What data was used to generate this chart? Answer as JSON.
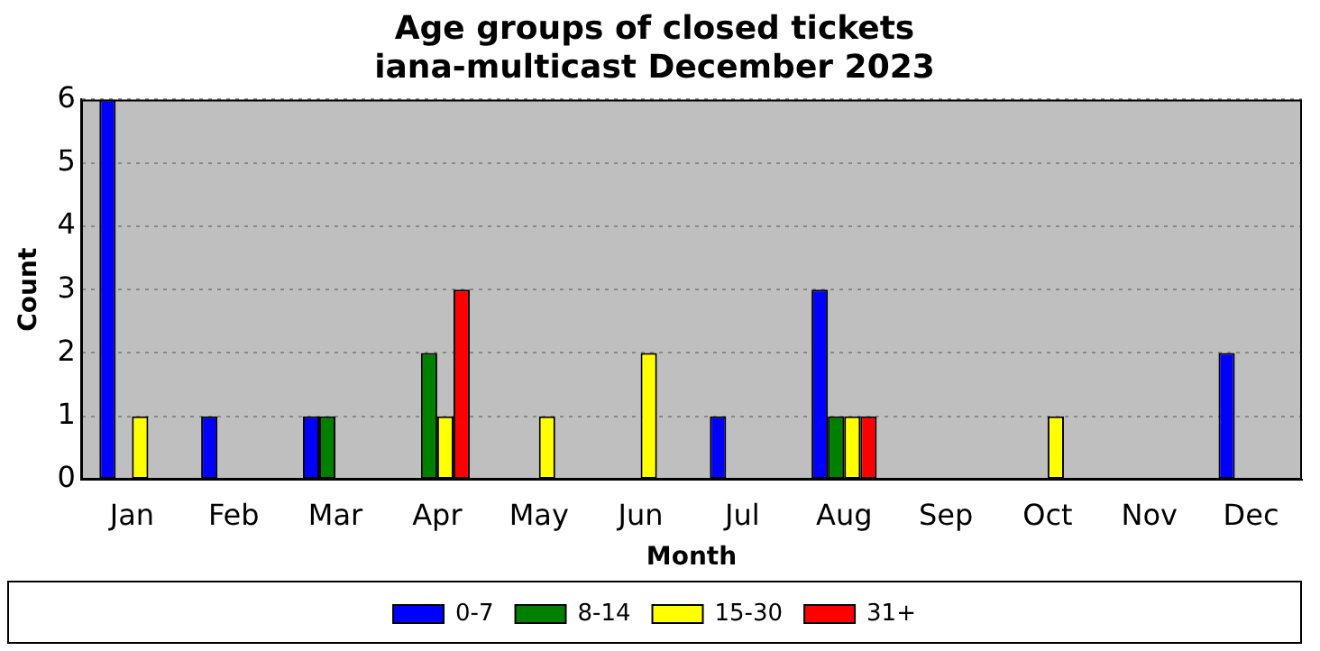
{
  "chart_data": {
    "type": "bar",
    "title": "Age groups of closed tickets",
    "subtitle": "iana-multicast December 2023",
    "xlabel": "Month",
    "ylabel": "Count",
    "categories": [
      "Jan",
      "Feb",
      "Mar",
      "Apr",
      "May",
      "Jun",
      "Jul",
      "Aug",
      "Sep",
      "Oct",
      "Nov",
      "Dec"
    ],
    "series": [
      {
        "name": "0-7",
        "color": "#0000ff",
        "values": [
          6,
          1,
          1,
          0,
          0,
          0,
          1,
          3,
          0,
          0,
          0,
          2
        ]
      },
      {
        "name": "8-14",
        "color": "#008000",
        "values": [
          0,
          0,
          1,
          2,
          0,
          0,
          0,
          1,
          0,
          0,
          0,
          0
        ]
      },
      {
        "name": "15-30",
        "color": "#ffff00",
        "values": [
          1,
          0,
          0,
          1,
          1,
          2,
          0,
          1,
          0,
          1,
          0,
          0
        ]
      },
      {
        "name": "31+",
        "color": "#ff0000",
        "values": [
          0,
          0,
          0,
          3,
          0,
          0,
          0,
          1,
          0,
          0,
          0,
          0
        ]
      }
    ],
    "ylim": [
      0,
      6
    ],
    "yticks": [
      0,
      1,
      2,
      3,
      4,
      5,
      6
    ],
    "grid": "y",
    "legend": "bottom"
  }
}
